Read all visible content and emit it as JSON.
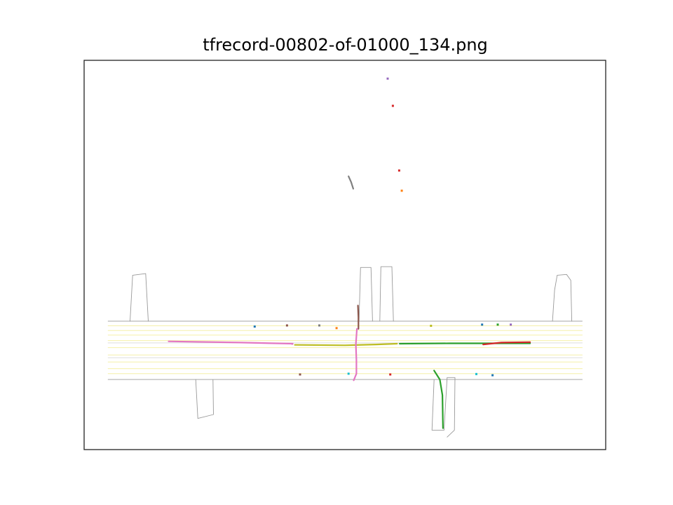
{
  "title": "tfrecord-00802-of-01000_134.png",
  "chart_data": {
    "type": "scatter",
    "title": "tfrecord-00802-of-01000_134.png",
    "xlim": [
      0,
      1
    ],
    "ylim": [
      0,
      1
    ],
    "grid": false,
    "colors": {
      "road_edge": "#999999",
      "lane_line": "#f5f0a8",
      "lane_line_alt": "#dddddd",
      "axes_frame": "#222222"
    },
    "map": {
      "road_edges": [
        [
          [
            0.046,
            0.33
          ],
          [
            0.955,
            0.33
          ]
        ],
        [
          [
            0.046,
            0.18
          ],
          [
            0.955,
            0.18
          ]
        ],
        [
          [
            0.088,
            0.33
          ],
          [
            0.093,
            0.448
          ],
          [
            0.118,
            0.452
          ],
          [
            0.123,
            0.33
          ]
        ],
        [
          [
            0.527,
            0.33
          ],
          [
            0.53,
            0.468
          ],
          [
            0.55,
            0.468
          ],
          [
            0.553,
            0.33
          ]
        ],
        [
          [
            0.567,
            0.33
          ],
          [
            0.569,
            0.47
          ],
          [
            0.59,
            0.47
          ],
          [
            0.593,
            0.33
          ]
        ],
        [
          [
            0.898,
            0.33
          ],
          [
            0.902,
            0.41
          ],
          [
            0.907,
            0.448
          ],
          [
            0.925,
            0.45
          ],
          [
            0.933,
            0.435
          ],
          [
            0.935,
            0.33
          ]
        ],
        [
          [
            0.214,
            0.18
          ],
          [
            0.218,
            0.08
          ],
          [
            0.248,
            0.09
          ],
          [
            0.247,
            0.18
          ]
        ],
        [
          [
            0.671,
            0.18
          ],
          [
            0.667,
            0.05
          ],
          [
            0.69,
            0.05
          ],
          [
            0.696,
            0.185
          ],
          [
            0.711,
            0.185
          ],
          [
            0.71,
            0.05
          ],
          [
            0.696,
            0.032
          ]
        ]
      ],
      "lane_lines": [
        [
          [
            0.046,
            0.318
          ],
          [
            0.955,
            0.318
          ]
        ],
        [
          [
            0.046,
            0.306
          ],
          [
            0.955,
            0.306
          ]
        ],
        [
          [
            0.046,
            0.294
          ],
          [
            0.955,
            0.294
          ]
        ],
        [
          [
            0.046,
            0.28
          ],
          [
            0.955,
            0.28
          ]
        ],
        [
          [
            0.046,
            0.262
          ],
          [
            0.955,
            0.262
          ]
        ],
        [
          [
            0.046,
            0.243
          ],
          [
            0.955,
            0.243
          ]
        ],
        [
          [
            0.046,
            0.225
          ],
          [
            0.955,
            0.225
          ]
        ],
        [
          [
            0.046,
            0.208
          ],
          [
            0.955,
            0.208
          ]
        ],
        [
          [
            0.046,
            0.195
          ],
          [
            0.955,
            0.195
          ]
        ]
      ],
      "lane_lines_alt": [
        [
          [
            0.046,
            0.274
          ],
          [
            0.955,
            0.274
          ]
        ],
        [
          [
            0.046,
            0.236
          ],
          [
            0.955,
            0.236
          ]
        ]
      ]
    },
    "tracks": [
      {
        "color": "#e377c2",
        "points": [
          [
            0.162,
            0.278
          ],
          [
            0.3,
            0.275
          ],
          [
            0.4,
            0.272
          ],
          [
            0.399,
            0.271
          ]
        ]
      },
      {
        "color": "#bcbd22",
        "points": [
          [
            0.404,
            0.269
          ],
          [
            0.5,
            0.268
          ],
          [
            0.56,
            0.27
          ],
          [
            0.6,
            0.272
          ]
        ]
      },
      {
        "color": "#2ca02c",
        "points": [
          [
            0.605,
            0.272
          ],
          [
            0.7,
            0.273
          ],
          [
            0.8,
            0.273
          ],
          [
            0.855,
            0.273
          ]
        ]
      },
      {
        "color": "#d62728",
        "points": [
          [
            0.765,
            0.27
          ],
          [
            0.8,
            0.275
          ],
          [
            0.855,
            0.276
          ]
        ]
      },
      {
        "color": "#8c564b",
        "points": [
          [
            0.525,
            0.37
          ],
          [
            0.526,
            0.34
          ],
          [
            0.526,
            0.31
          ]
        ]
      },
      {
        "color": "#e377c2",
        "points": [
          [
            0.523,
            0.31
          ],
          [
            0.521,
            0.27
          ],
          [
            0.522,
            0.23
          ],
          [
            0.522,
            0.195
          ],
          [
            0.517,
            0.178
          ]
        ]
      },
      {
        "color": "#2ca02c",
        "points": [
          [
            0.671,
            0.203
          ],
          [
            0.682,
            0.18
          ],
          [
            0.687,
            0.14
          ],
          [
            0.688,
            0.055
          ]
        ]
      },
      {
        "color": "#7f7f7f",
        "points": [
          [
            0.507,
            0.702
          ],
          [
            0.512,
            0.687
          ],
          [
            0.516,
            0.67
          ]
        ]
      }
    ],
    "points": [
      {
        "color": "#9467bd",
        "x": 0.582,
        "y": 0.953
      },
      {
        "color": "#d62728",
        "x": 0.592,
        "y": 0.883
      },
      {
        "color": "#d62728",
        "x": 0.604,
        "y": 0.717
      },
      {
        "color": "#ff7f0e",
        "x": 0.609,
        "y": 0.665
      },
      {
        "color": "#1f77b4",
        "x": 0.327,
        "y": 0.316
      },
      {
        "color": "#8c564b",
        "x": 0.389,
        "y": 0.319
      },
      {
        "color": "#7f7f7f",
        "x": 0.451,
        "y": 0.319
      },
      {
        "color": "#ff7f0e",
        "x": 0.484,
        "y": 0.312
      },
      {
        "color": "#bcbd22",
        "x": 0.665,
        "y": 0.318
      },
      {
        "color": "#1f77b4",
        "x": 0.763,
        "y": 0.321
      },
      {
        "color": "#2ca02c",
        "x": 0.793,
        "y": 0.321
      },
      {
        "color": "#9467bd",
        "x": 0.818,
        "y": 0.321
      },
      {
        "color": "#8c564b",
        "x": 0.414,
        "y": 0.193
      },
      {
        "color": "#17becf",
        "x": 0.507,
        "y": 0.195
      },
      {
        "color": "#d62728",
        "x": 0.587,
        "y": 0.193
      },
      {
        "color": "#17becf",
        "x": 0.752,
        "y": 0.194
      },
      {
        "color": "#1f77b4",
        "x": 0.783,
        "y": 0.191
      }
    ]
  }
}
